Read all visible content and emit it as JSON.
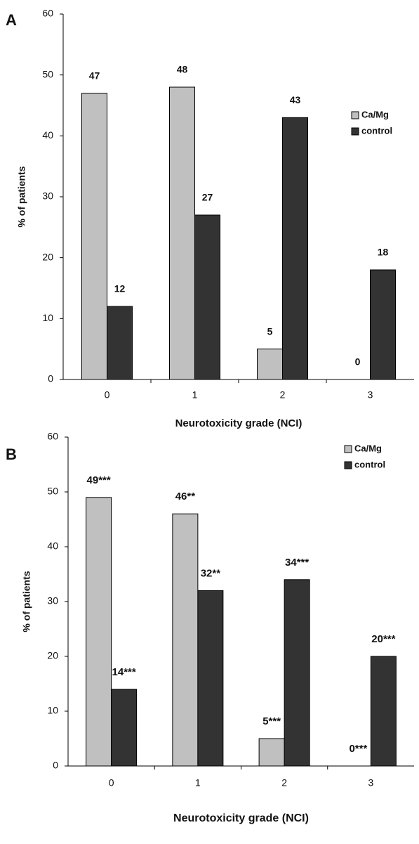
{
  "chart_data": [
    {
      "type": "bar",
      "panel": "A",
      "categories": [
        "0",
        "1",
        "2",
        "3"
      ],
      "series": [
        {
          "name": "Ca/Mg",
          "color": "#c0c0c0",
          "values": [
            47,
            48,
            5,
            0
          ]
        },
        {
          "name": "control",
          "color": "#333333",
          "values": [
            12,
            27,
            43,
            18
          ]
        }
      ],
      "ylim": [
        0,
        60
      ],
      "yticks": [
        0,
        10,
        20,
        30,
        40,
        50,
        60
      ],
      "x_label": "Neurotoxicity grade (NCI)",
      "y_label": "% of patients",
      "legend": "upper right"
    },
    {
      "type": "bar",
      "panel": "B",
      "categories": [
        "0",
        "1",
        "2",
        "3"
      ],
      "series": [
        {
          "name": "Ca/Mg",
          "color": "#c0c0c0",
          "values": [
            49,
            46,
            5,
            0
          ],
          "value_labels": [
            "49***",
            "46**",
            "5***",
            "0***"
          ]
        },
        {
          "name": "control",
          "color": "#333333",
          "values": [
            14,
            32,
            34,
            20
          ],
          "value_labels": [
            "14***",
            "32**",
            "34***",
            "20***"
          ]
        }
      ],
      "ylim": [
        0,
        60
      ],
      "yticks": [
        0,
        10,
        20,
        30,
        40,
        50,
        60
      ],
      "x_label": "Neurotoxicity grade (NCI)",
      "y_label": "% of patients",
      "legend": "upper right"
    }
  ]
}
